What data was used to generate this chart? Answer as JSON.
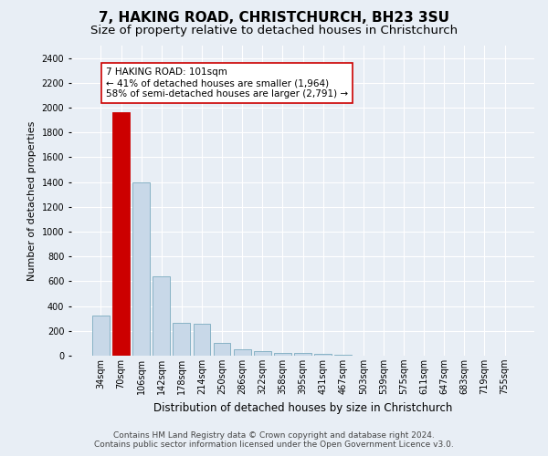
{
  "title": "7, HAKING ROAD, CHRISTCHURCH, BH23 3SU",
  "subtitle": "Size of property relative to detached houses in Christchurch",
  "xlabel": "Distribution of detached houses by size in Christchurch",
  "ylabel": "Number of detached properties",
  "categories": [
    "34sqm",
    "70sqm",
    "106sqm",
    "142sqm",
    "178sqm",
    "214sqm",
    "250sqm",
    "286sqm",
    "322sqm",
    "358sqm",
    "395sqm",
    "431sqm",
    "467sqm",
    "503sqm",
    "539sqm",
    "575sqm",
    "611sqm",
    "647sqm",
    "683sqm",
    "719sqm",
    "755sqm"
  ],
  "values": [
    320,
    1960,
    1400,
    640,
    265,
    260,
    100,
    50,
    40,
    25,
    20,
    12,
    5,
    3,
    2,
    1,
    1,
    0,
    0,
    0,
    0
  ],
  "bar_color": "#c8d8e8",
  "bar_edge_color": "#7aaabf",
  "highlight_bar_index": 1,
  "highlight_color": "#cc0000",
  "highlight_edge_color": "#cc0000",
  "annotation_text": "7 HAKING ROAD: 101sqm\n← 41% of detached houses are smaller (1,964)\n58% of semi-detached houses are larger (2,791) →",
  "annotation_box_color": "#ffffff",
  "annotation_border_color": "#cc0000",
  "ylim": [
    0,
    2500
  ],
  "yticks": [
    0,
    200,
    400,
    600,
    800,
    1000,
    1200,
    1400,
    1600,
    1800,
    2000,
    2200,
    2400
  ],
  "background_color": "#e8eef5",
  "plot_background": "#e8eef5",
  "footer_line1": "Contains HM Land Registry data © Crown copyright and database right 2024.",
  "footer_line2": "Contains public sector information licensed under the Open Government Licence v3.0.",
  "title_fontsize": 11,
  "subtitle_fontsize": 9.5,
  "xlabel_fontsize": 8.5,
  "ylabel_fontsize": 8,
  "tick_fontsize": 7,
  "footer_fontsize": 6.5,
  "annotation_fontsize": 7.5
}
